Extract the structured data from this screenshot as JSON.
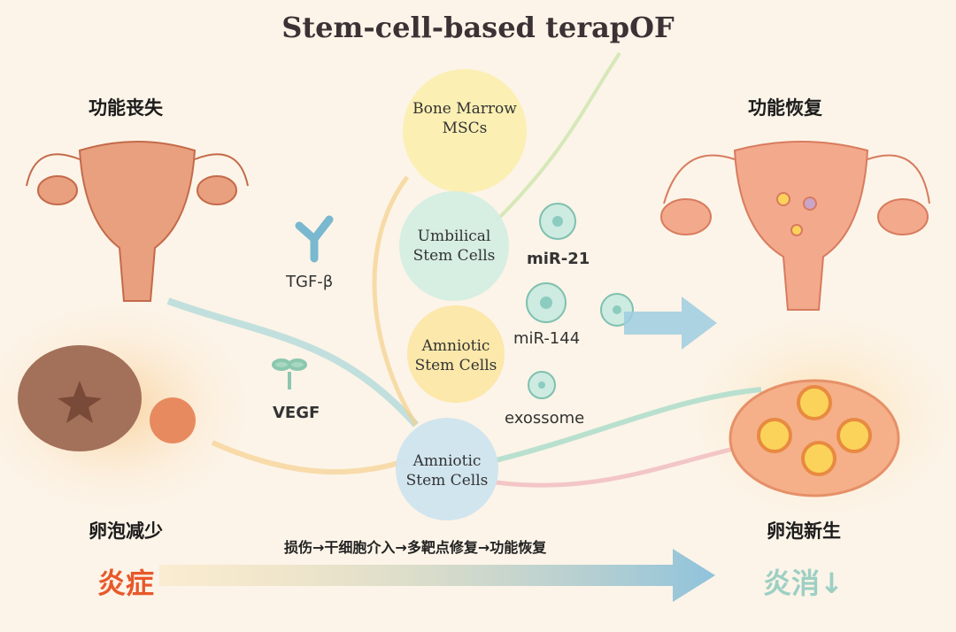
{
  "title": "Stem-cell-based terapOF",
  "left": {
    "top_label": "功能丧失",
    "bottom_label": "卵泡减少",
    "status": "炎症",
    "status_color": "#e8582a"
  },
  "right": {
    "top_label": "功能恢复",
    "bottom_label": "卵泡新生",
    "status": "炎消↓",
    "status_color": "#9ecfc4"
  },
  "cells": [
    {
      "label": "Bone Marrow MSCs",
      "color": "#fbeeb0"
    },
    {
      "label": "Umbilical Stem Cells",
      "color": "#d5ede2"
    },
    {
      "label": "Amniotic Stem Cells",
      "color": "#fbe7a6"
    },
    {
      "label": "Amniotic Stem Cells",
      "color": "#cfe4ef"
    }
  ],
  "factors": {
    "tgf": "TGF-β",
    "vegf": "VEGF",
    "mir21": "miR-21",
    "mir144": "miR-144",
    "exosome": "exossome"
  },
  "pathway": "损伤→干细胞介入→多靶点修复→功能恢复"
}
